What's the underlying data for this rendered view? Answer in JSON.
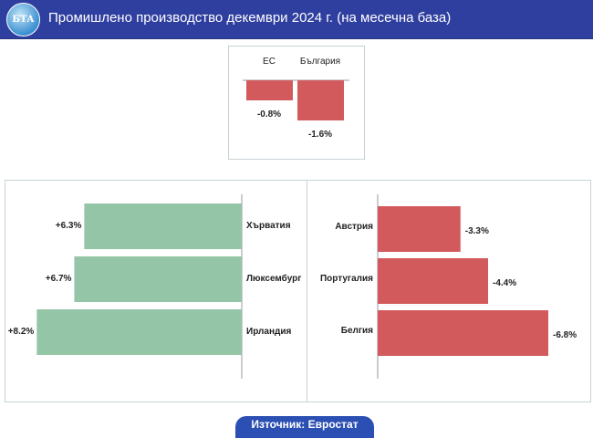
{
  "header": {
    "title": "Промишлено производство декември 2024 г. (на месечна база)",
    "logo_text": "БТА"
  },
  "colors": {
    "header": "#2f3f9f",
    "negative": "#d35a5c",
    "positive": "#93c5a6"
  },
  "chart_data": [
    {
      "type": "bar",
      "orientation": "vertical",
      "categories": [
        "ЕС",
        "България"
      ],
      "values": [
        -0.8,
        -1.6
      ],
      "labels": [
        "-0.8%",
        "-1.6%"
      ]
    },
    {
      "type": "bar",
      "orientation": "horizontal",
      "categories": [
        "Хърватия",
        "Люксембург",
        "Ирландия"
      ],
      "values": [
        6.3,
        6.7,
        8.2
      ],
      "labels": [
        "+6.3%",
        "+6.7%",
        "+8.2%"
      ]
    },
    {
      "type": "bar",
      "orientation": "horizontal",
      "categories": [
        "Австрия",
        "Португалия",
        "Белгия"
      ],
      "values": [
        -3.3,
        -4.4,
        -6.8
      ],
      "labels": [
        "-3.3%",
        "-4.4%",
        "-6.8%"
      ]
    }
  ],
  "footer": {
    "source": "Източник: Евростат"
  }
}
